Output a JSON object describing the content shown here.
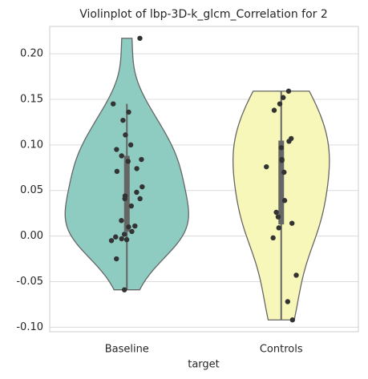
{
  "chart_data": {
    "type": "violin",
    "title": "Violinplot of lbp-3D-k_glcm_Correlation for 2",
    "x_label": "target",
    "categories": [
      "Baseline",
      "Controls"
    ],
    "series": [
      {
        "name": "Baseline",
        "color": "#8ecbc0",
        "values": [
          0.217,
          0.145,
          0.136,
          0.127,
          0.111,
          0.1,
          0.095,
          0.088,
          0.082,
          0.084,
          0.074,
          0.071,
          0.054,
          0.048,
          0.044,
          0.041,
          0.041,
          0.033,
          0.017,
          0.011,
          0.01,
          0.005,
          0.002,
          -0.001,
          -0.003,
          -0.004,
          -0.005,
          -0.025,
          -0.059
        ]
      },
      {
        "name": "Controls",
        "color": "#f7f7b9",
        "values": [
          0.159,
          0.152,
          0.145,
          0.138,
          0.107,
          0.104,
          0.097,
          0.083,
          0.084,
          0.076,
          0.07,
          0.039,
          0.021,
          0.014,
          0.026,
          0.009,
          -0.002,
          -0.043,
          -0.072,
          -0.092
        ]
      }
    ],
    "ylim": [
      -0.105,
      0.23
    ],
    "yticks": [
      {
        "value": -0.1,
        "label": "-0.10"
      },
      {
        "value": -0.05,
        "label": "-0.05"
      },
      {
        "value": 0,
        "label": "0.00"
      },
      {
        "value": 0.05,
        "label": "0.05"
      },
      {
        "value": 0.1,
        "label": "0.10"
      },
      {
        "value": 0.15,
        "label": "0.15"
      },
      {
        "value": 0.2,
        "label": "0.20"
      }
    ],
    "grid": true
  }
}
